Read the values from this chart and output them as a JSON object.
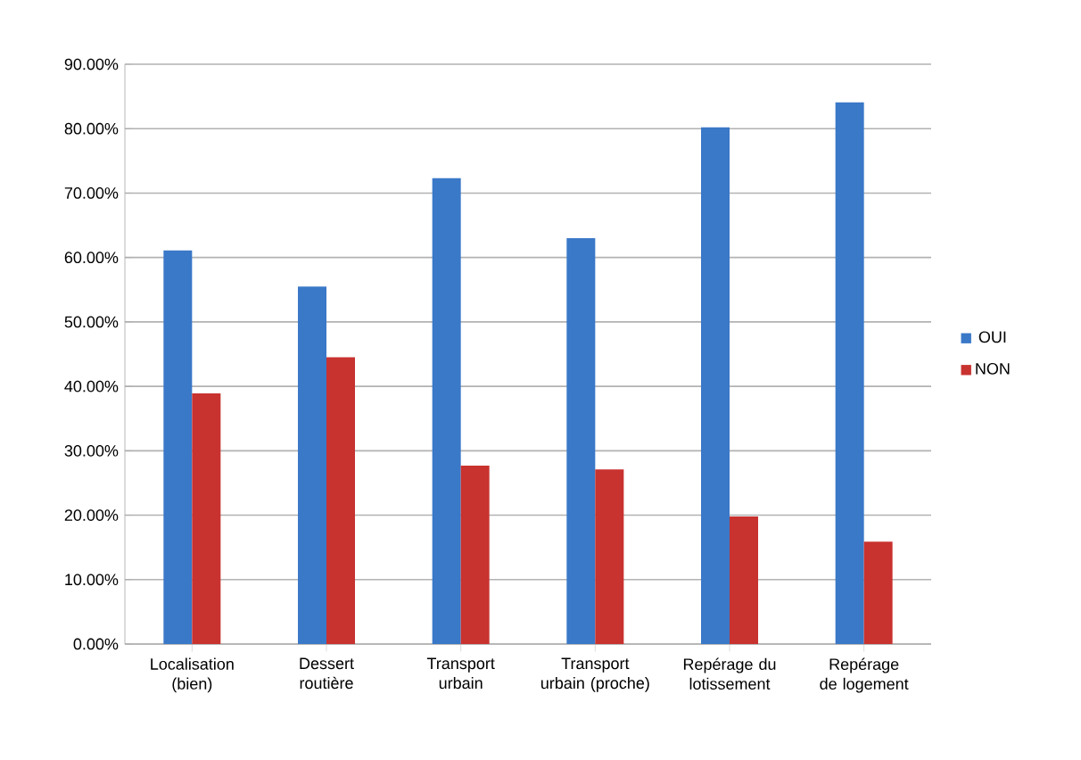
{
  "chart_data": {
    "type": "bar",
    "categories": [
      "Localisation (bien)",
      "Dessert routière",
      "Transport urbain",
      "Transport urbain (proche)",
      "Repérage du lotissement",
      "Repérage de logement"
    ],
    "series": [
      {
        "name": "OUI",
        "color": "#3a78c8",
        "values": [
          61.1,
          55.5,
          72.3,
          63.0,
          80.2,
          84.1
        ]
      },
      {
        "name": "NON",
        "color": "#c8322f",
        "values": [
          38.9,
          44.5,
          27.7,
          27.1,
          19.8,
          15.9
        ]
      }
    ],
    "ylim": [
      0,
      90
    ],
    "yticks": [
      {
        "value": 0,
        "label": "0.00%"
      },
      {
        "value": 10,
        "label": "10.00%"
      },
      {
        "value": 20,
        "label": "20.00%"
      },
      {
        "value": 30,
        "label": "30.00%"
      },
      {
        "value": 40,
        "label": "40.00%"
      },
      {
        "value": 50,
        "label": "50.00%"
      },
      {
        "value": 60,
        "label": "60.00%"
      },
      {
        "value": 70,
        "label": "70.00%"
      },
      {
        "value": 80,
        "label": "80.00%"
      },
      {
        "value": 90,
        "label": "90.00%"
      }
    ],
    "grid": "y",
    "legend": "right"
  }
}
